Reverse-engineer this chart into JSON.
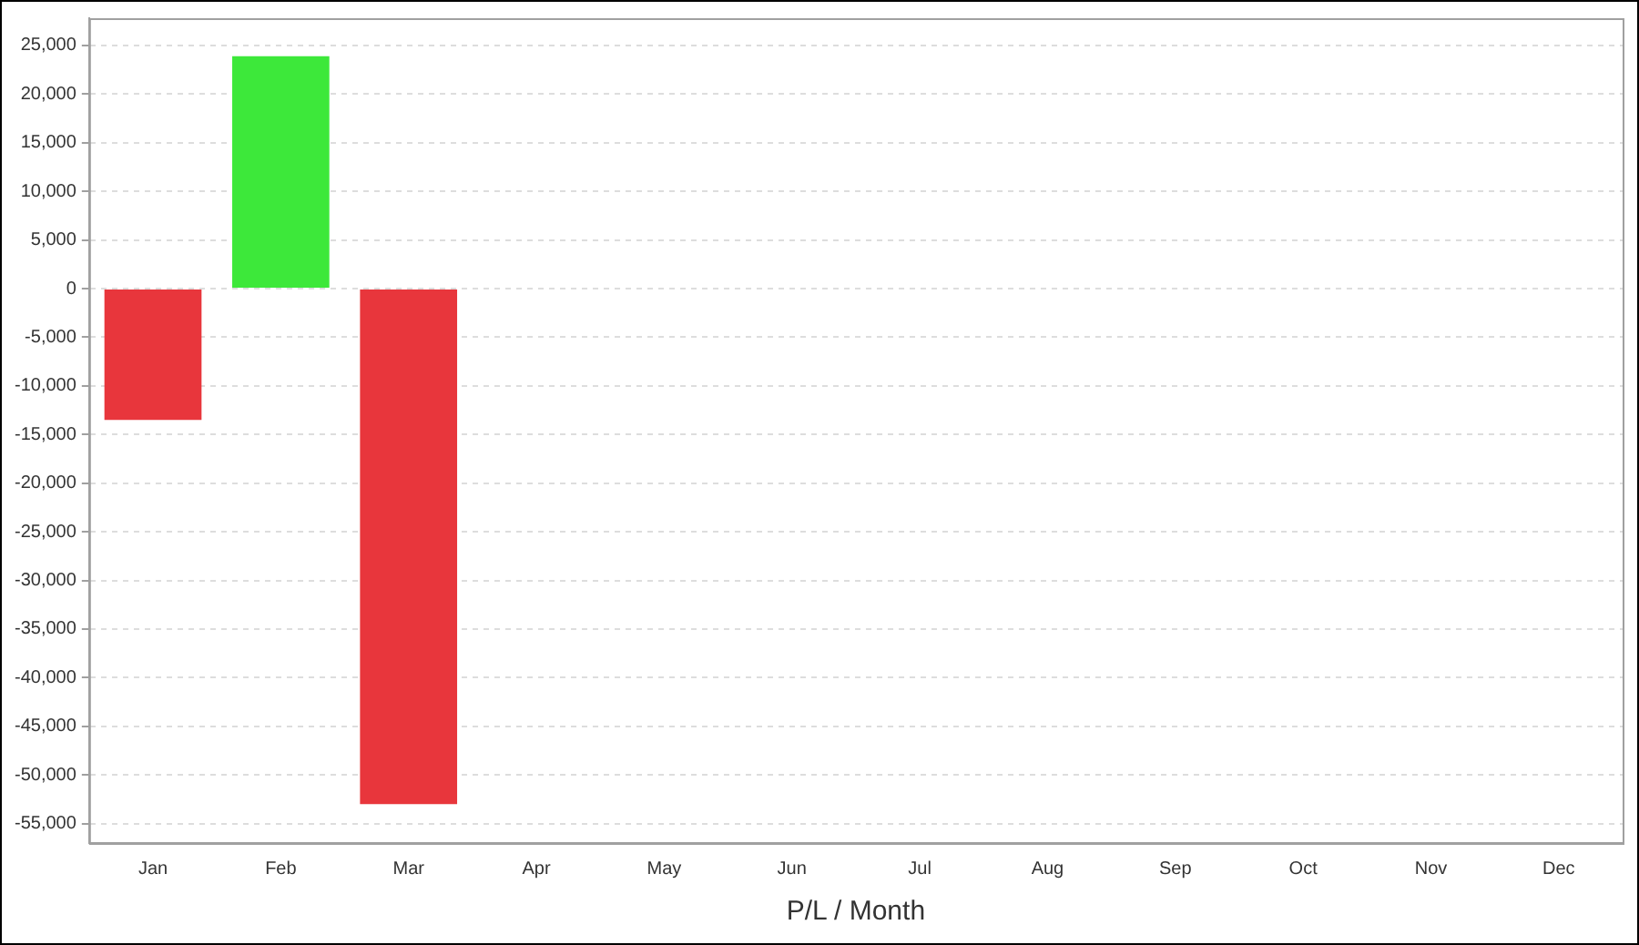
{
  "chart_data": {
    "type": "bar",
    "xlabel": "P/L / Month",
    "categories": [
      "Jan",
      "Feb",
      "Mar",
      "Apr",
      "May",
      "Jun",
      "Jul",
      "Aug",
      "Sep",
      "Oct",
      "Nov",
      "Dec"
    ],
    "values": [
      -13500,
      23900,
      -53000,
      null,
      null,
      null,
      null,
      null,
      null,
      null,
      null,
      null
    ],
    "colors": [
      "#e8363c",
      "#3de83a",
      "#e8363c",
      "#e8363c",
      "#e8363c",
      "#e8363c",
      "#e8363c",
      "#e8363c",
      "#e8363c",
      "#e8363c",
      "#e8363c",
      "#e8363c"
    ],
    "ylim": [
      -57000,
      27800
    ],
    "yticks": [
      {
        "value": -55000,
        "label": "-55,000"
      },
      {
        "value": -50000,
        "label": "-50,000"
      },
      {
        "value": -45000,
        "label": "-45,000"
      },
      {
        "value": -40000,
        "label": "-40,000"
      },
      {
        "value": -35000,
        "label": "-35,000"
      },
      {
        "value": -30000,
        "label": "-30,000"
      },
      {
        "value": -25000,
        "label": "-25,000"
      },
      {
        "value": -20000,
        "label": "-20,000"
      },
      {
        "value": -15000,
        "label": "-15,000"
      },
      {
        "value": -10000,
        "label": "-10,000"
      },
      {
        "value": -5000,
        "label": "-5,000"
      },
      0,
      {
        "value": 5000,
        "label": "5,000"
      },
      {
        "value": 10000,
        "label": "10,000"
      },
      {
        "value": 15000,
        "label": "15,000"
      },
      {
        "value": 20000,
        "label": "20,000"
      },
      {
        "value": 25000,
        "label": "25,000"
      }
    ],
    "grid": "y",
    "legend": false
  }
}
